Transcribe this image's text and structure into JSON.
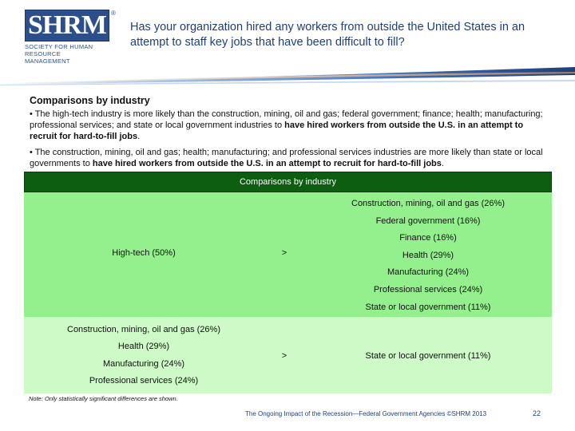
{
  "logo": {
    "mark": "SHRM",
    "line1": "SOCIETY FOR HUMAN",
    "line2": "RESOURCE MANAGEMENT"
  },
  "question": "Has your organization hired any workers from outside the United States in an attempt to staff key jobs that have been difficult to fill?",
  "section_title": "Comparisons by industry",
  "bullets": [
    {
      "prefix": "• The high-tech industry is more likely than the construction, mining, oil and gas; federal government; finance; health; manufacturing; professional services; and state or local government industries to ",
      "bold": "have hired workers from outside the U.S. in an attempt to recruit for hard-to-fill jobs",
      "suffix": "."
    },
    {
      "prefix": "• The construction, mining, oil and gas; health; manufacturing; and professional services industries are more likely than state or local governments to ",
      "bold": "have hired workers from outside the U.S. in an attempt to recruit for hard-to-fill jobs",
      "suffix": "."
    }
  ],
  "table": {
    "header": "Comparisons by industry",
    "row1": {
      "left": "High-tech (50%)",
      "operator": ">",
      "right": [
        "Construction, mining, oil and gas (26%)",
        "Federal government (16%)",
        "Finance (16%)",
        "Health (29%)",
        "Manufacturing (24%)",
        "Professional services (24%)",
        "State or local government (11%)"
      ]
    },
    "row2": {
      "left": [
        "Construction, mining, oil and gas (26%)",
        "Health (29%)",
        "Manufacturing (24%)",
        "Professional services (24%)"
      ],
      "operator": ">",
      "right": "State or local government (11%)"
    }
  },
  "note": "Note: Only statistically significant differences are shown.",
  "footer": "The Ongoing Impact of the Recession—Federal Government Agencies ©SHRM 2013",
  "page_number": "22",
  "colors": {
    "header_green": "#0e5e12",
    "row1_green": "#94f08c",
    "row2_green": "#cdfac6",
    "brand_blue": "#2c4f8c"
  }
}
